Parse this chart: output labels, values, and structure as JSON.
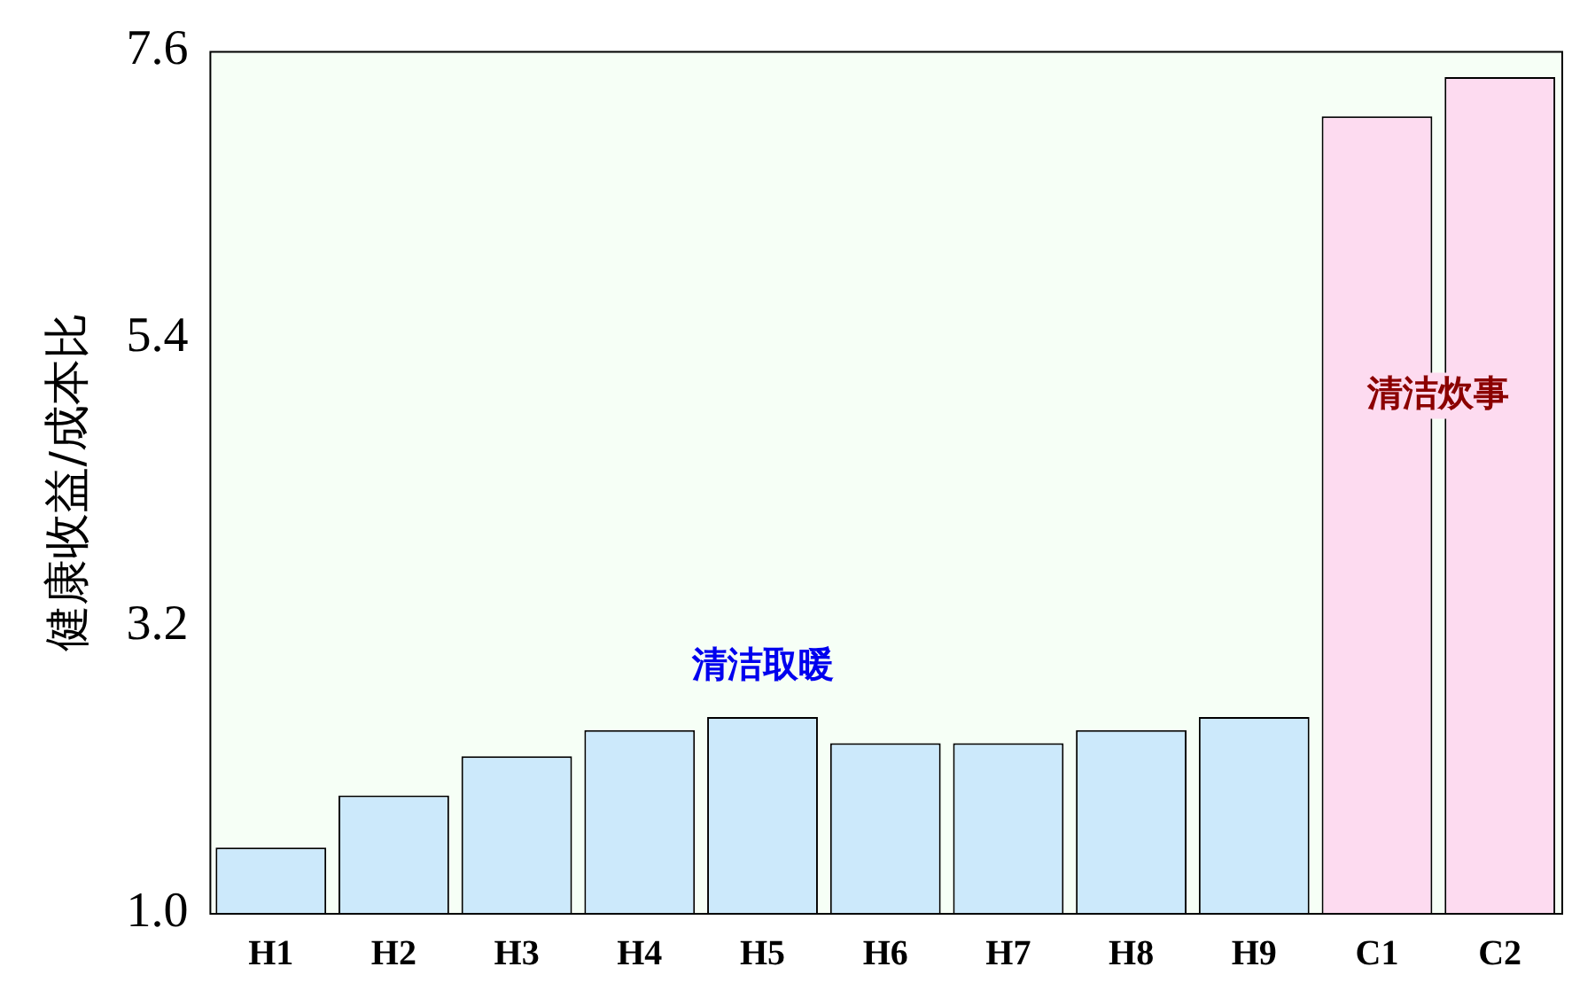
{
  "chart_data": {
    "type": "bar",
    "ylabel": "健康收益/成本比",
    "categories": [
      "H1",
      "H2",
      "H3",
      "H4",
      "H5",
      "H6",
      "H7",
      "H8",
      "H9",
      "C1",
      "C2"
    ],
    "values": [
      1.5,
      1.9,
      2.2,
      2.4,
      2.5,
      2.3,
      2.3,
      2.4,
      2.5,
      7.1,
      7.4
    ],
    "colors": [
      "#cce9fb",
      "#cce9fb",
      "#cce9fb",
      "#cce9fb",
      "#cce9fb",
      "#cce9fb",
      "#cce9fb",
      "#cce9fb",
      "#cce9fb",
      "#fddbf0",
      "#fddbf0"
    ],
    "ylim": [
      1.0,
      7.6
    ],
    "yticks": [
      {
        "value": 1.0,
        "label": "1.0"
      },
      {
        "value": 3.2,
        "label": "3.2"
      },
      {
        "value": 5.4,
        "label": "5.4"
      },
      {
        "value": 7.6,
        "label": "7.6"
      }
    ],
    "grid": false,
    "legend": false,
    "annotations": [
      "清洁取暖",
      "清洁炊事"
    ]
  }
}
